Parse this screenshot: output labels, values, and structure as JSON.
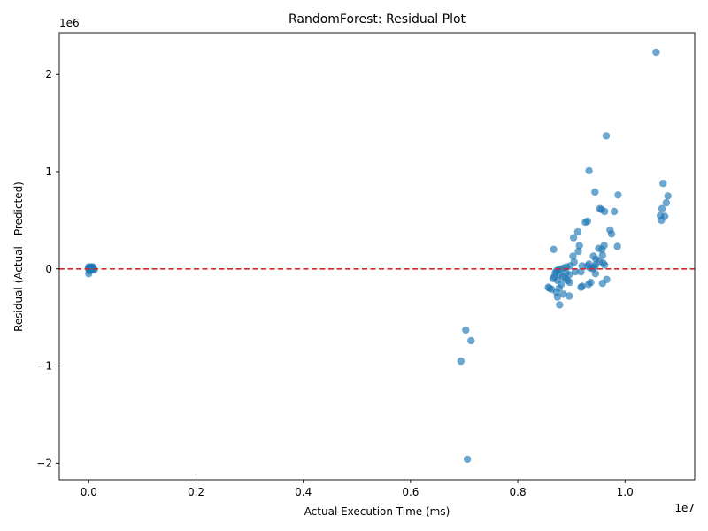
{
  "chart_data": {
    "type": "scatter",
    "title": "RandomForest: Residual Plot",
    "xlabel": "Actual Execution Time (ms)",
    "ylabel": "Residual (Actual - Predicted)",
    "x_offset_text": "1e7",
    "y_offset_text": "1e6",
    "xlim": [
      -0.055,
      1.13
    ],
    "ylim": [
      -2.17,
      2.43
    ],
    "x_ticks": [
      0.0,
      0.2,
      0.4,
      0.6,
      0.8,
      1.0
    ],
    "x_tick_labels": [
      "0.0",
      "0.2",
      "0.4",
      "0.6",
      "0.8",
      "1.0"
    ],
    "y_ticks": [
      -2,
      -1,
      0,
      1,
      2
    ],
    "y_tick_labels": [
      "−2",
      "−1",
      "0",
      "1",
      "2"
    ],
    "grid": false,
    "reference_line": {
      "y": 0,
      "style": "dashed",
      "color": "#d62728"
    },
    "marker_color": "#1f77b4",
    "marker_alpha": 0.65,
    "points": [
      [
        0.0,
        -0.05
      ],
      [
        0.0,
        0.0
      ],
      [
        0.002,
        0.01
      ],
      [
        0.003,
        -0.01
      ],
      [
        0.005,
        0.02
      ],
      [
        0.006,
        0.0
      ],
      [
        0.008,
        0.01
      ],
      [
        0.01,
        -0.01
      ],
      [
        0.0,
        0.01
      ],
      [
        0.004,
        0.0
      ],
      [
        0.007,
        0.02
      ],
      [
        0.009,
        0.0
      ],
      [
        0.001,
        -0.02
      ],
      [
        0.0,
        0.02
      ],
      [
        0.694,
        -0.95
      ],
      [
        0.703,
        -0.63
      ],
      [
        0.713,
        -0.74
      ],
      [
        0.706,
        -1.96
      ],
      [
        1.058,
        2.23
      ],
      [
        0.965,
        1.37
      ],
      [
        0.933,
        1.01
      ],
      [
        1.071,
        0.88
      ],
      [
        0.944,
        0.79
      ],
      [
        0.987,
        0.76
      ],
      [
        1.08,
        0.75
      ],
      [
        1.077,
        0.68
      ],
      [
        1.069,
        0.62
      ],
      [
        1.066,
        0.55
      ],
      [
        1.074,
        0.54
      ],
      [
        1.068,
        0.5
      ],
      [
        0.953,
        0.62
      ],
      [
        0.956,
        0.61
      ],
      [
        0.962,
        0.59
      ],
      [
        0.98,
        0.59
      ],
      [
        0.926,
        0.48
      ],
      [
        0.93,
        0.49
      ],
      [
        0.972,
        0.4
      ],
      [
        0.975,
        0.36
      ],
      [
        0.912,
        0.38
      ],
      [
        0.904,
        0.32
      ],
      [
        0.915,
        0.24
      ],
      [
        0.961,
        0.24
      ],
      [
        0.986,
        0.23
      ],
      [
        0.951,
        0.21
      ],
      [
        0.957,
        0.2
      ],
      [
        0.867,
        0.2
      ],
      [
        0.913,
        0.18
      ],
      [
        0.958,
        0.14
      ],
      [
        0.903,
        0.13
      ],
      [
        0.941,
        0.13
      ],
      [
        0.946,
        0.1
      ],
      [
        0.952,
        0.08
      ],
      [
        0.959,
        0.06
      ],
      [
        0.962,
        0.04
      ],
      [
        0.945,
        0.04
      ],
      [
        0.933,
        0.05
      ],
      [
        0.93,
        0.03
      ],
      [
        0.92,
        0.03
      ],
      [
        0.905,
        0.07
      ],
      [
        0.898,
        0.03
      ],
      [
        0.891,
        0.02
      ],
      [
        0.886,
        0.01
      ],
      [
        0.88,
        0.0
      ],
      [
        0.876,
        -0.01
      ],
      [
        0.872,
        -0.02
      ],
      [
        0.87,
        -0.04
      ],
      [
        0.878,
        -0.06
      ],
      [
        0.884,
        -0.08
      ],
      [
        0.889,
        -0.1
      ],
      [
        0.893,
        -0.12
      ],
      [
        0.897,
        -0.14
      ],
      [
        0.868,
        -0.08
      ],
      [
        0.866,
        -0.1
      ],
      [
        0.874,
        -0.12
      ],
      [
        0.881,
        -0.16
      ],
      [
        0.877,
        -0.2
      ],
      [
        0.872,
        -0.24
      ],
      [
        0.885,
        -0.26
      ],
      [
        0.896,
        -0.28
      ],
      [
        0.874,
        -0.29
      ],
      [
        0.878,
        -0.37
      ],
      [
        0.859,
        -0.2
      ],
      [
        0.863,
        -0.21
      ],
      [
        0.857,
        -0.19
      ],
      [
        0.92,
        -0.18
      ],
      [
        0.918,
        -0.19
      ],
      [
        0.932,
        -0.16
      ],
      [
        0.936,
        -0.14
      ],
      [
        0.958,
        -0.15
      ],
      [
        0.966,
        -0.11
      ],
      [
        0.945,
        -0.05
      ],
      [
        0.907,
        -0.03
      ],
      [
        0.918,
        -0.03
      ],
      [
        0.94,
        0.0
      ],
      [
        0.935,
        0.01
      ],
      [
        0.943,
        0.02
      ],
      [
        0.896,
        -0.06
      ],
      [
        0.89,
        -0.04
      ]
    ]
  }
}
